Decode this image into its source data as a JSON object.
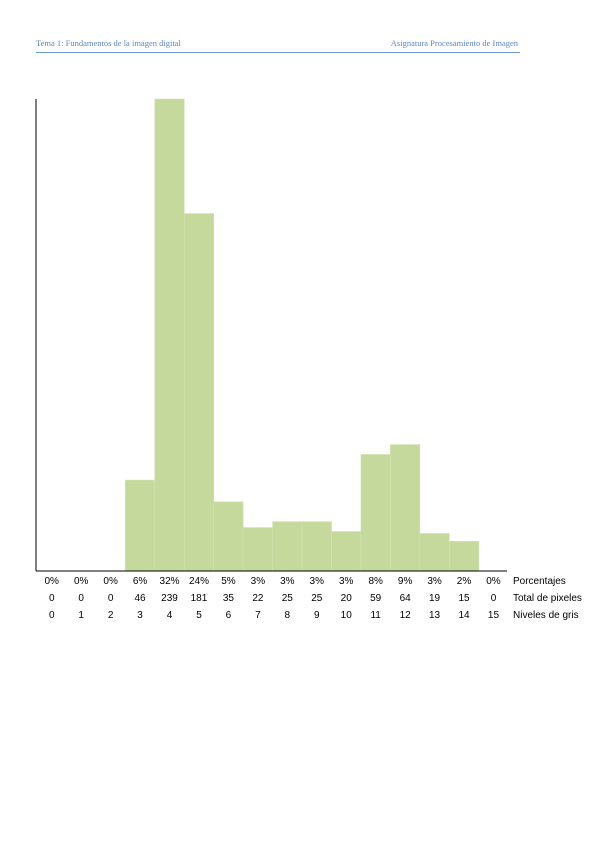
{
  "header": {
    "left": "Tema 1: Fundamentos de la imagen digital",
    "right": "Asignatura Procesamiento de Imagen"
  },
  "chart_data": {
    "type": "bar",
    "bar_color": "#c4d99b",
    "axis_color": "#000000",
    "categories": [
      "0",
      "1",
      "2",
      "3",
      "4",
      "5",
      "6",
      "7",
      "8",
      "9",
      "10",
      "11",
      "12",
      "13",
      "14",
      "15"
    ],
    "values": [
      0,
      0,
      0,
      46,
      239,
      181,
      35,
      22,
      25,
      25,
      20,
      59,
      64,
      19,
      15,
      0
    ],
    "percentages": [
      "0%",
      "0%",
      "0%",
      "6%",
      "32%",
      "24%",
      "5%",
      "3%",
      "3%",
      "3%",
      "3%",
      "8%",
      "9%",
      "3%",
      "2%",
      "0%"
    ],
    "row_labels": {
      "percentages": "Porcentajes",
      "values": "Total de pixeles",
      "categories": "Niveles de gris"
    },
    "ylim": [
      0,
      239
    ],
    "grid": false,
    "legend": "none"
  }
}
